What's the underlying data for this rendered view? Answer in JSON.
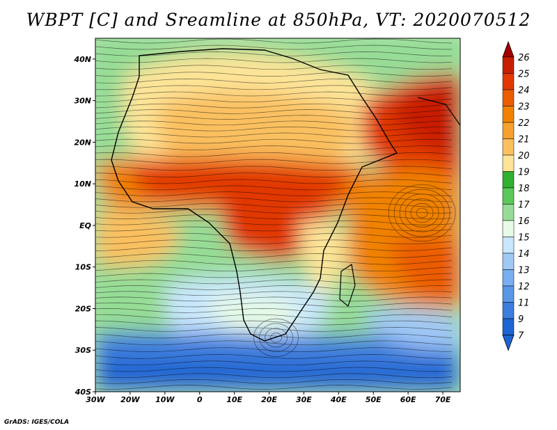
{
  "title": "WBPT [C] and Sreamline at 850hPa, VT: 2020070512",
  "credit": "GrADS: IGES/COLA",
  "map": {
    "lon_range": [
      -30,
      75
    ],
    "lat_range": [
      -40,
      45
    ],
    "lon_ticks": [
      {
        "value": -30,
        "label": "30W"
      },
      {
        "value": -20,
        "label": "20W"
      },
      {
        "value": -10,
        "label": "10W"
      },
      {
        "value": 0,
        "label": "0"
      },
      {
        "value": 10,
        "label": "10E"
      },
      {
        "value": 20,
        "label": "20E"
      },
      {
        "value": 30,
        "label": "30E"
      },
      {
        "value": 40,
        "label": "40E"
      },
      {
        "value": 50,
        "label": "50E"
      },
      {
        "value": 60,
        "label": "60E"
      },
      {
        "value": 70,
        "label": "70E"
      }
    ],
    "lat_ticks": [
      {
        "value": 40,
        "label": "40N"
      },
      {
        "value": 30,
        "label": "30N"
      },
      {
        "value": 20,
        "label": "20N"
      },
      {
        "value": 10,
        "label": "10N"
      },
      {
        "value": 0,
        "label": "EQ"
      },
      {
        "value": -10,
        "label": "10S"
      },
      {
        "value": -20,
        "label": "20S"
      },
      {
        "value": -30,
        "label": "30S"
      },
      {
        "value": -40,
        "label": "40S"
      }
    ]
  },
  "colorbar": {
    "labels": [
      "26",
      "25",
      "24",
      "23",
      "22",
      "21",
      "20",
      "19",
      "18",
      "17",
      "16",
      "15",
      "14",
      "13",
      "12",
      "11",
      "9",
      "7"
    ],
    "colors": [
      "#a00000",
      "#c81e00",
      "#e13800",
      "#eb5c00",
      "#f08200",
      "#f5a030",
      "#fac060",
      "#fde498",
      "#30b030",
      "#5ac85a",
      "#96dc96",
      "#e6fae6",
      "#c8e6fc",
      "#a0c8f5",
      "#78aff0",
      "#5a96e6",
      "#3c7ddc",
      "#1e64d2"
    ]
  }
}
